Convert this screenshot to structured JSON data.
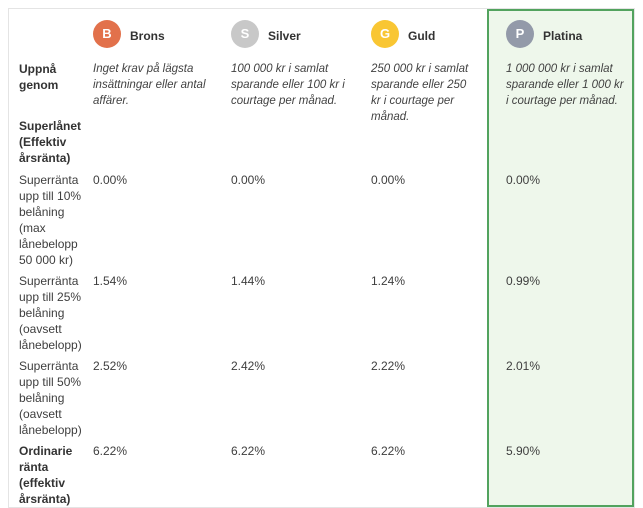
{
  "table": {
    "tiers": [
      {
        "name": "Brons",
        "initial": "B",
        "color": "#e2714b"
      },
      {
        "name": "Silver",
        "initial": "S",
        "color": "#c8c8c8"
      },
      {
        "name": "Guld",
        "initial": "G",
        "color": "#f9c633"
      },
      {
        "name": "Platina",
        "initial": "P",
        "color": "#939aa9",
        "highlighted": true
      }
    ],
    "highlight": {
      "border_color": "#52a35e",
      "background": "#eef7eb"
    },
    "rows": [
      {
        "label": "Uppnå genom",
        "values": [
          "Inget krav på lägsta insättningar eller antal affärer.",
          "100 000 kr i samlat sparande eller 100 kr i courtage per månad.",
          "250 000 kr i samlat sparande eller 250 kr i courtage per månad.",
          "1 000 000 kr i samlat sparande eller 1 000 kr i courtage per månad."
        ]
      },
      {
        "label": "Superlånet (Effektiv årsränta)",
        "values": [
          "",
          "",
          "",
          ""
        ]
      },
      {
        "label": "Superränta upp till 10% belåning (max lånebelopp 50 000 kr)",
        "values": [
          "0.00%",
          "0.00%",
          "0.00%",
          "0.00%"
        ]
      },
      {
        "label": "Superränta upp till 25% belåning (oavsett lånebelopp)",
        "values": [
          "1.54%",
          "1.44%",
          "1.24%",
          "0.99%"
        ]
      },
      {
        "label": "Superränta upp till 50% belåning (oavsett lånebelopp)",
        "values": [
          "2.52%",
          "2.42%",
          "2.22%",
          "2.01%"
        ]
      },
      {
        "label": "Ordinarie ränta (effektiv årsränta)",
        "values": [
          "6.22%",
          "6.22%",
          "6.22%",
          "5.90%"
        ]
      }
    ]
  }
}
